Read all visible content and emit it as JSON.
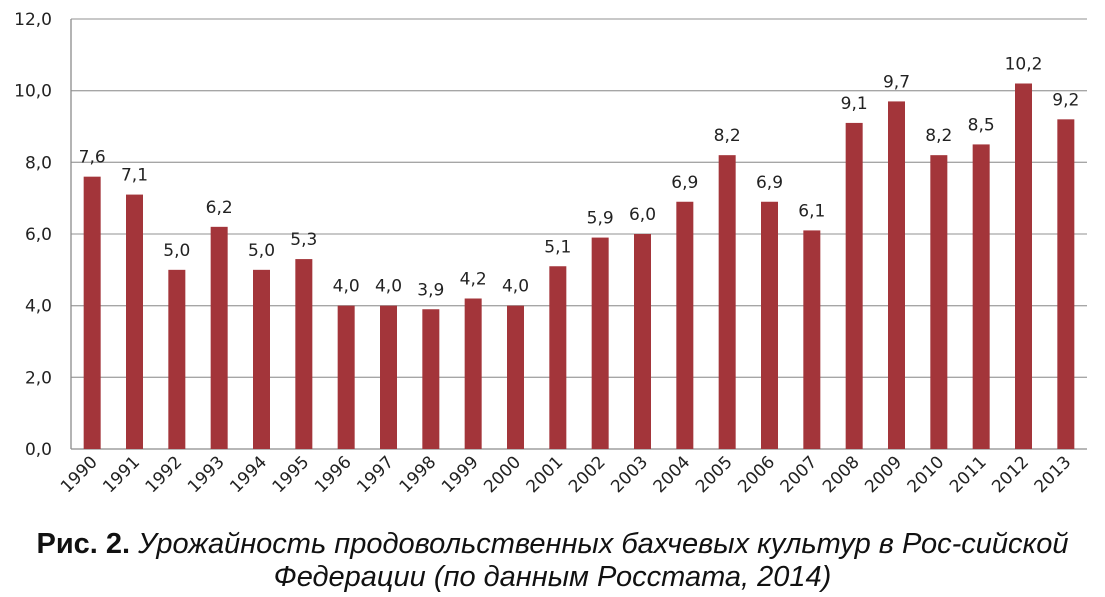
{
  "chart_data": {
    "type": "bar",
    "categories": [
      "1990",
      "1991",
      "1992",
      "1993",
      "1994",
      "1995",
      "1996",
      "1997",
      "1998",
      "1999",
      "2000",
      "2001",
      "2002",
      "2003",
      "2004",
      "2005",
      "2006",
      "2007",
      "2008",
      "2009",
      "2010",
      "2011",
      "2012",
      "2013"
    ],
    "values": [
      7.6,
      7.1,
      5.0,
      6.2,
      5.0,
      5.3,
      4.0,
      4.0,
      3.9,
      4.2,
      4.0,
      5.1,
      5.9,
      6.0,
      6.9,
      8.2,
      6.9,
      6.1,
      9.1,
      9.7,
      8.2,
      8.5,
      10.2,
      9.2
    ],
    "data_labels": [
      "7,6",
      "7,1",
      "5,0",
      "6,2",
      "5,0",
      "5,3",
      "4,0",
      "4,0",
      "3,9",
      "4,2",
      "4,0",
      "5,1",
      "5,9",
      "6,0",
      "6,9",
      "8,2",
      "6,9",
      "6,1",
      "9,1",
      "9,7",
      "8,2",
      "8,5",
      "10,2",
      "9,2"
    ],
    "y_ticks": [
      "0,0",
      "2,0",
      "4,0",
      "6,0",
      "8,0",
      "10,0",
      "12,0"
    ],
    "ylim": [
      0,
      12
    ],
    "grid": true,
    "bar_color": "#a3353a",
    "title": "",
    "xlabel": "",
    "ylabel": ""
  },
  "caption": {
    "label": "Рис. 2.",
    "text": "Урожайность продовольственных бахчевых культур в Рос-сийской Федерации (по данным Росстата, 2014)"
  }
}
